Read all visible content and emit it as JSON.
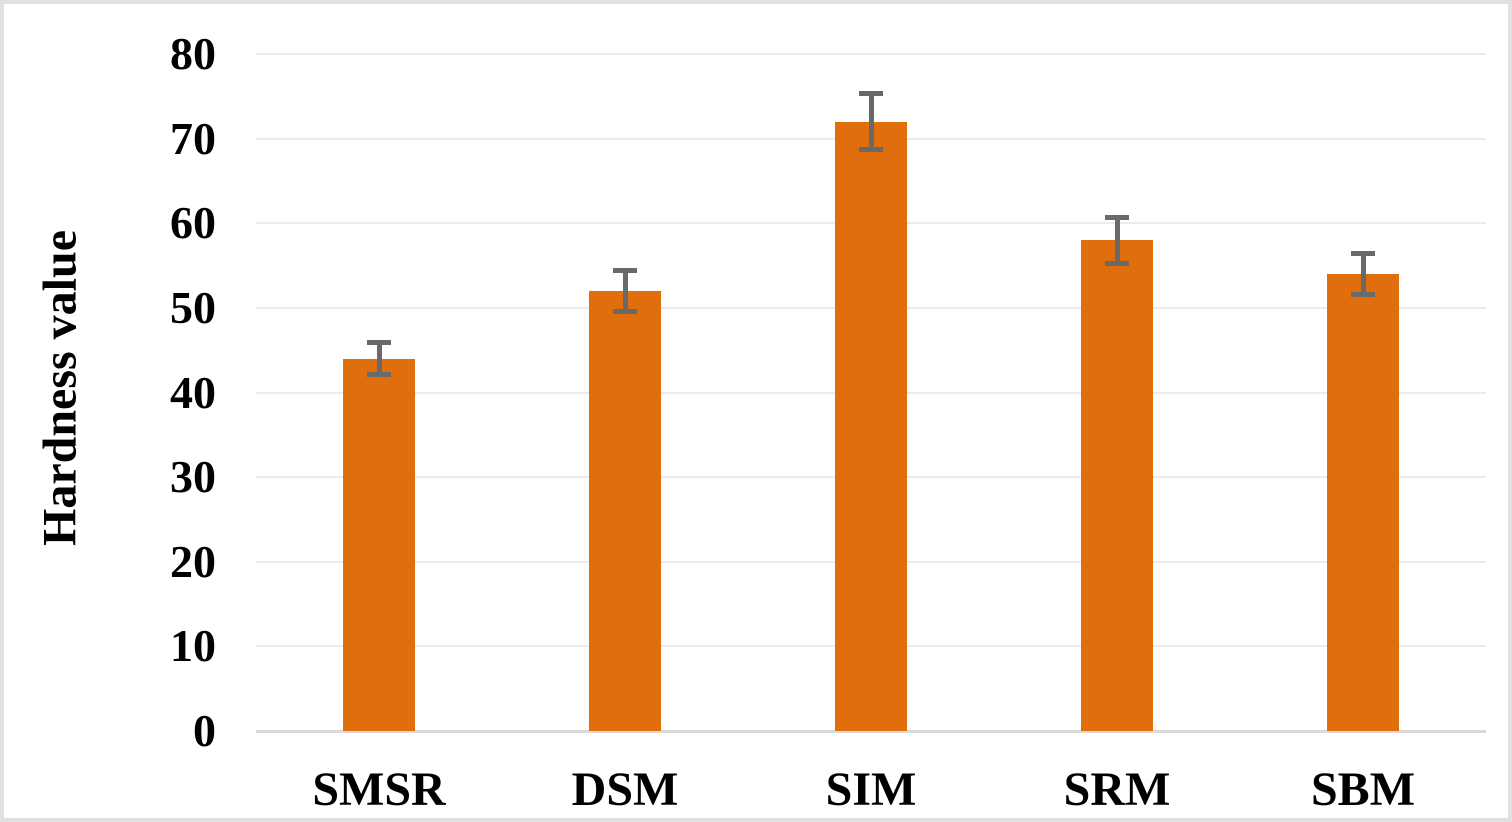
{
  "figure": {
    "background_color": "#FFFFFF",
    "border_color": "#E1E1E1"
  },
  "chart_data": {
    "type": "bar",
    "title": "",
    "xlabel": "",
    "ylabel": "Hardness value",
    "categories": [
      "SMSR",
      "DSM",
      "SIM",
      "SRM",
      "SBM"
    ],
    "values": [
      44,
      52,
      72,
      58,
      54
    ],
    "error_bars": [
      2.2,
      2.7,
      3.6,
      3.0,
      2.7
    ],
    "ylim": [
      0,
      80
    ],
    "yticks": [
      0,
      10,
      20,
      30,
      40,
      50,
      60,
      70,
      80
    ],
    "grid": "horizontal",
    "legend_position": "none",
    "bar_color": "#E06E0D",
    "error_bar_color": "#696969",
    "gridline_color": "#EBEBEB",
    "axis_line_color": "#D9D9D9",
    "text_color": "#000000"
  }
}
